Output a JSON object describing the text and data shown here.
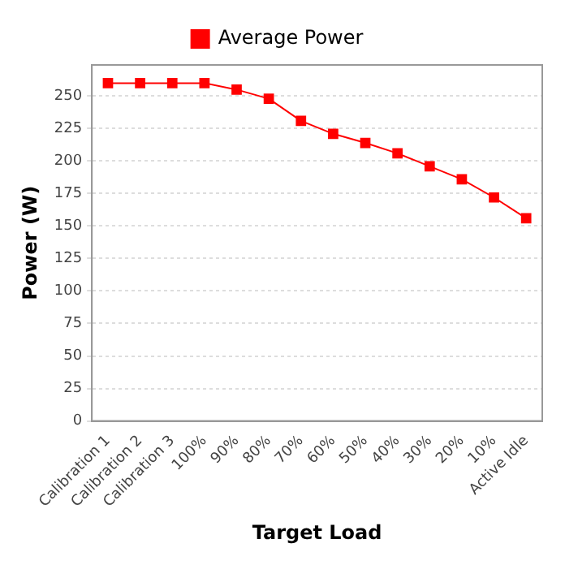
{
  "chart_data": {
    "type": "line",
    "xlabel": "Target Load",
    "ylabel": "Power (W)",
    "categories": [
      "Calibration 1",
      "Calibration 2",
      "Calibration 3",
      "100%",
      "90%",
      "80%",
      "70%",
      "60%",
      "50%",
      "40%",
      "30%",
      "20%",
      "10%",
      "Active Idle"
    ],
    "series": [
      {
        "name": "Average Power",
        "color": "#ff0000",
        "values": [
          260,
          260,
          260,
          260,
          255,
          248,
          231,
          221,
          214,
          206,
          196,
          186,
          172,
          156
        ]
      }
    ],
    "ylim": [
      0,
      274
    ],
    "yticks": [
      0,
      25,
      50,
      75,
      100,
      125,
      150,
      175,
      200,
      225,
      250
    ],
    "grid": "y",
    "legend": "top",
    "marker": "square",
    "line_style": "solid"
  }
}
